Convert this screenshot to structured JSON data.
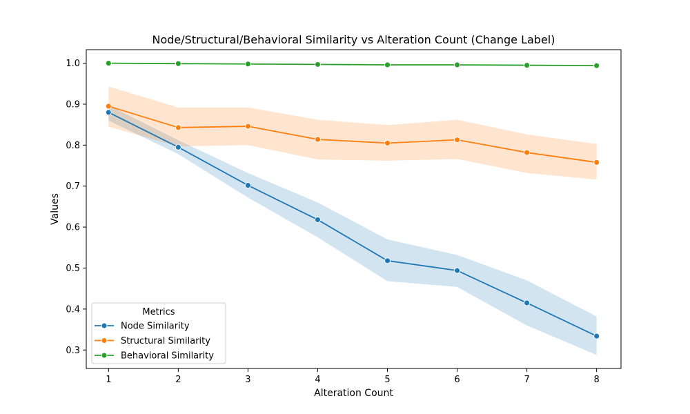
{
  "chart_data": {
    "type": "line",
    "title": "Node/Structural/Behavioral Similarity vs Alteration Count (Change Label)",
    "xlabel": "Alteration Count",
    "ylabel": "Values",
    "x": [
      1,
      2,
      3,
      4,
      5,
      6,
      7,
      8
    ],
    "xlim": [
      0.68,
      8.35
    ],
    "ylim": [
      0.255,
      1.033
    ],
    "xticks": [
      "1",
      "2",
      "3",
      "4",
      "5",
      "6",
      "7",
      "8"
    ],
    "yticks": [
      "0.3",
      "0.4",
      "0.5",
      "0.6",
      "0.7",
      "0.8",
      "0.9",
      "1.0"
    ],
    "grid": false,
    "legend": {
      "title": "Metrics",
      "placement": "lower-left"
    },
    "series": [
      {
        "name": "Node Similarity",
        "color": "#1f77b4",
        "values": [
          0.88,
          0.795,
          0.702,
          0.618,
          0.518,
          0.494,
          0.415,
          0.334
        ],
        "ci_low": [
          0.86,
          0.778,
          0.672,
          0.575,
          0.468,
          0.454,
          0.36,
          0.288
        ],
        "ci_high": [
          0.897,
          0.812,
          0.732,
          0.66,
          0.57,
          0.532,
          0.47,
          0.382
        ]
      },
      {
        "name": "Structural Similarity",
        "color": "#ff7f0e",
        "values": [
          0.895,
          0.843,
          0.846,
          0.814,
          0.805,
          0.813,
          0.782,
          0.758
        ],
        "ci_low": [
          0.845,
          0.797,
          0.8,
          0.765,
          0.762,
          0.766,
          0.732,
          0.716
        ],
        "ci_high": [
          0.943,
          0.892,
          0.892,
          0.862,
          0.849,
          0.862,
          0.826,
          0.803
        ]
      },
      {
        "name": "Behavioral Similarity",
        "color": "#2ca02c",
        "values": [
          1.0,
          0.999,
          0.998,
          0.997,
          0.996,
          0.996,
          0.995,
          0.994
        ],
        "ci_low": [
          1.0,
          0.999,
          0.997,
          0.996,
          0.995,
          0.995,
          0.994,
          0.993
        ],
        "ci_high": [
          1.0,
          0.999,
          0.999,
          0.998,
          0.997,
          0.997,
          0.996,
          0.995
        ]
      }
    ]
  }
}
